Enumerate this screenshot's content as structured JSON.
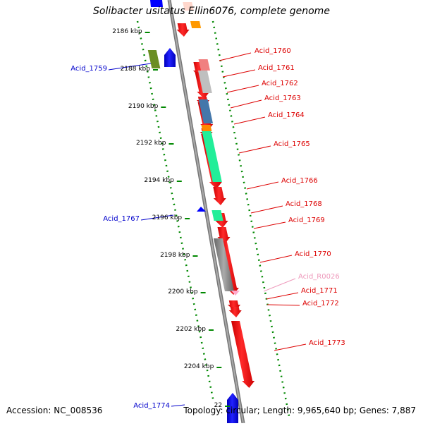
{
  "title": "Solibacter usitatus Ellin6076, complete genome",
  "footer": {
    "accession": "Accession: NC_008536",
    "summary": "Topology: circular; Length: 9,965,640 bp; Genes: 7,887"
  },
  "axis_ticks": [
    "2186 kbp",
    "2188 kbp",
    "2190 kbp",
    "2192 kbp",
    "2194 kbp",
    "2196 kbp",
    "2198 kbp",
    "2200 kbp",
    "2202 kbp",
    "2204 kbp",
    "22"
  ],
  "left_labels": [
    "Acid_1759",
    "Acid_1767",
    "Acid_1774"
  ],
  "right_labels": [
    "Acid_1760",
    "Acid_1761",
    "Acid_1762",
    "Acid_1763",
    "Acid_1764",
    "Acid_1765",
    "Acid_1766",
    "Acid_1768",
    "Acid_1769",
    "Acid_1770",
    "Acid_R0026",
    "Acid_1771",
    "Acid_1772",
    "Acid_1773"
  ],
  "colors": {
    "forward_label": "#0000cc",
    "reverse_label": "#dd0000",
    "rna_label": "#ee99bb",
    "cds": "#ff0000",
    "forward_gene": "#0000ff",
    "backbone": "#888888",
    "dotted_guides": "#008800"
  }
}
